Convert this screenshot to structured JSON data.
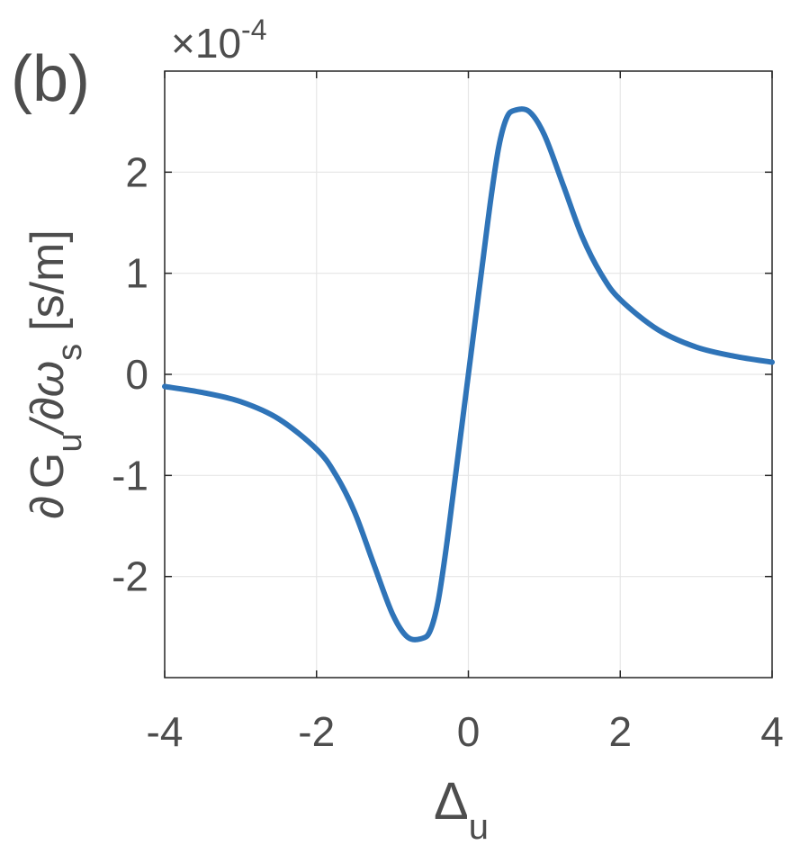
{
  "chart_data": {
    "type": "line",
    "panel_label": "(b)",
    "x_axis": {
      "label_main": "Δ",
      "label_sub": "u",
      "range": [
        -4,
        4
      ],
      "ticks": [
        -4,
        -2,
        0,
        2,
        4
      ],
      "tick_labels": [
        "-4",
        "-2",
        "0",
        "2",
        "4"
      ]
    },
    "y_axis": {
      "label_partial1": "∂",
      "label_G": "G",
      "label_sub_u": "u",
      "label_slash": "/∂ω",
      "label_sub_s": "s",
      "label_units": "[s/m]",
      "range": [
        -3,
        3
      ],
      "scale_multiplier_base": "×10",
      "scale_multiplier_exponent": "-4",
      "ticks": [
        -2,
        -1,
        0,
        1,
        2
      ],
      "tick_labels": [
        "-2",
        "-1",
        "0",
        "1",
        "2"
      ]
    },
    "grid": true,
    "series": [
      {
        "color": "#2f74b8",
        "x": [
          -4.0,
          -3.5,
          -3.0,
          -2.5,
          -2.0,
          -1.75,
          -1.5,
          -1.25,
          -1.0,
          -0.8,
          -0.6,
          -0.5,
          -0.4,
          -0.3,
          -0.2,
          -0.1,
          0.0,
          0.1,
          0.2,
          0.3,
          0.4,
          0.5,
          0.6,
          0.8,
          1.0,
          1.25,
          1.5,
          1.75,
          2.0,
          2.5,
          3.0,
          3.5,
          4.0
        ],
        "y": [
          -0.12,
          -0.18,
          -0.27,
          -0.44,
          -0.74,
          -0.99,
          -1.36,
          -1.87,
          -2.37,
          -2.6,
          -2.61,
          -2.53,
          -2.25,
          -1.76,
          -1.18,
          -0.59,
          0.0,
          0.59,
          1.18,
          1.76,
          2.25,
          2.53,
          2.61,
          2.6,
          2.37,
          1.87,
          1.36,
          0.99,
          0.74,
          0.44,
          0.27,
          0.18,
          0.12
        ]
      }
    ]
  }
}
